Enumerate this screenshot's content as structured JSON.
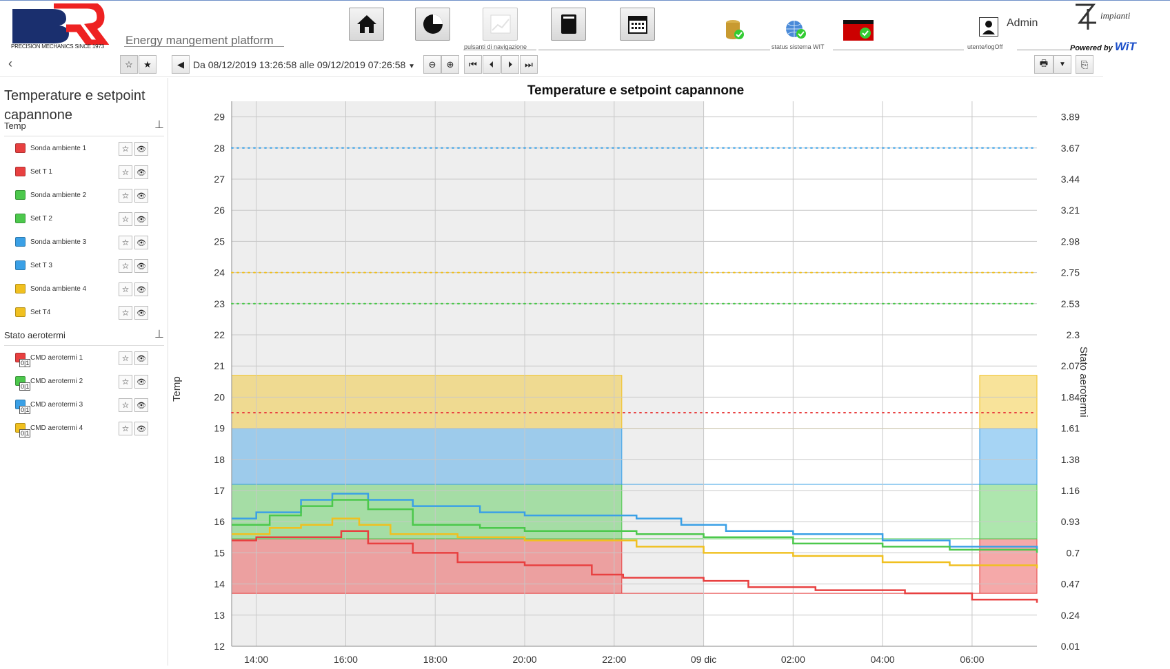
{
  "header": {
    "logo_text": "BR",
    "logo_tagline": "PRECISION MECHANICS SINCE 1973",
    "platform_name": "Energy mangement platform",
    "nav_label": "pulsanti di navigazione",
    "status_label": "status sistema WIT",
    "user_label": "utente/logOff",
    "user_name": "Admin",
    "partner_logo": "impianti",
    "powered_by": "Powered by",
    "powered_brand": "WiT"
  },
  "toolbar": {
    "date_range": "Da 08/12/2019 13:26:58 alle 09/12/2019 07:26:58"
  },
  "sidebar": {
    "title": "Temperature e setpoint capannone",
    "groups": [
      {
        "label": "Temp",
        "items": [
          {
            "label": "Sonda ambiente 1",
            "color": "#e84040"
          },
          {
            "label": "Set T 1",
            "color": "#e84040"
          },
          {
            "label": "Sonda ambiente 2",
            "color": "#4cc84c"
          },
          {
            "label": "Set T 2",
            "color": "#4cc84c"
          },
          {
            "label": "Sonda ambiente 3",
            "color": "#3aa0e6"
          },
          {
            "label": "Set T 3",
            "color": "#3aa0e6"
          },
          {
            "label": "Sonda ambiente 4",
            "color": "#f0c020"
          },
          {
            "label": "Set T4",
            "color": "#f0c020"
          }
        ]
      },
      {
        "label": "Stato aerotermi",
        "items": [
          {
            "label": "CMD aerotermi 1",
            "color": "#e84040",
            "badge": "0|1"
          },
          {
            "label": "CMD aerotermi 2",
            "color": "#4cc84c",
            "badge": "0|1"
          },
          {
            "label": "CMD aerotermi 3",
            "color": "#3aa0e6",
            "badge": "0|1"
          },
          {
            "label": "CMD aerotermi 4",
            "color": "#f0c020",
            "badge": "0|1"
          }
        ]
      }
    ]
  },
  "chart_data": {
    "type": "line",
    "title": "Temperature e setpoint capannone",
    "ylabel": "Temp",
    "y2label": "Stato aerotermi",
    "ylim": [
      12,
      29.5
    ],
    "y_ticks": [
      "12",
      "13",
      "14",
      "15",
      "16",
      "17",
      "18",
      "19",
      "20",
      "21",
      "22",
      "23",
      "24",
      "25",
      "26",
      "27",
      "28",
      "29"
    ],
    "y2_ticks": [
      "0.01",
      "0.24",
      "0.47",
      "0.7",
      "0.93",
      "1.16",
      "1.38",
      "1.61",
      "1.84",
      "2.07",
      "2.3",
      "2.53",
      "2.75",
      "2.98",
      "3.21",
      "3.44",
      "3.67",
      "3.89"
    ],
    "x_ticks": [
      "14:00",
      "16:00",
      "18:00",
      "20:00",
      "22:00",
      "09 dic",
      "02:00",
      "04:00",
      "06:00"
    ],
    "x_range_hours": [
      13.45,
      31.45
    ],
    "series": [
      {
        "name": "Set T 3",
        "color": "#3aa0e6",
        "values": [
          [
            13.45,
            28
          ],
          [
            31.45,
            28
          ]
        ]
      },
      {
        "name": "Set T4",
        "color": "#f0c020",
        "values": [
          [
            13.45,
            24
          ],
          [
            31.45,
            24
          ]
        ]
      },
      {
        "name": "Set T 2",
        "color": "#4cc84c",
        "values": [
          [
            13.45,
            23
          ],
          [
            31.45,
            23
          ]
        ]
      },
      {
        "name": "Set T 1",
        "color": "#e84040",
        "values": [
          [
            13.45,
            19.5
          ],
          [
            31.45,
            19.5
          ]
        ]
      },
      {
        "name": "Sonda ambiente 3",
        "color": "#3aa0e6",
        "values": [
          [
            13.45,
            16.1
          ],
          [
            14.0,
            16.3
          ],
          [
            15.0,
            16.7
          ],
          [
            15.7,
            16.9
          ],
          [
            16.5,
            16.7
          ],
          [
            17.5,
            16.5
          ],
          [
            19.0,
            16.3
          ],
          [
            20.0,
            16.2
          ],
          [
            22.0,
            16.2
          ],
          [
            22.5,
            16.1
          ],
          [
            23.5,
            15.9
          ],
          [
            24.5,
            15.7
          ],
          [
            26.0,
            15.6
          ],
          [
            28.0,
            15.4
          ],
          [
            29.5,
            15.2
          ],
          [
            31.45,
            15.1
          ]
        ]
      },
      {
        "name": "Sonda ambiente 2",
        "color": "#4cc84c",
        "values": [
          [
            13.45,
            15.9
          ],
          [
            14.3,
            16.2
          ],
          [
            15.0,
            16.5
          ],
          [
            15.7,
            16.7
          ],
          [
            16.5,
            16.4
          ],
          [
            17.5,
            15.9
          ],
          [
            19.0,
            15.8
          ],
          [
            20.0,
            15.7
          ],
          [
            22.0,
            15.7
          ],
          [
            22.5,
            15.6
          ],
          [
            24.0,
            15.5
          ],
          [
            26.0,
            15.3
          ],
          [
            28.0,
            15.2
          ],
          [
            29.5,
            15.1
          ],
          [
            31.45,
            15.0
          ]
        ]
      },
      {
        "name": "Sonda ambiente 4",
        "color": "#f0c020",
        "values": [
          [
            13.45,
            15.6
          ],
          [
            14.3,
            15.8
          ],
          [
            15.0,
            15.9
          ],
          [
            15.7,
            16.1
          ],
          [
            16.3,
            15.9
          ],
          [
            17.0,
            15.6
          ],
          [
            18.5,
            15.5
          ],
          [
            20.0,
            15.4
          ],
          [
            22.0,
            15.4
          ],
          [
            22.5,
            15.2
          ],
          [
            24.0,
            15.0
          ],
          [
            26.0,
            14.9
          ],
          [
            28.0,
            14.7
          ],
          [
            29.5,
            14.6
          ],
          [
            31.45,
            14.5
          ]
        ]
      },
      {
        "name": "Sonda ambiente 1",
        "color": "#e84040",
        "values": [
          [
            13.45,
            15.4
          ],
          [
            14.0,
            15.5
          ],
          [
            15.0,
            15.5
          ],
          [
            15.9,
            15.7
          ],
          [
            16.5,
            15.3
          ],
          [
            17.5,
            15.0
          ],
          [
            18.5,
            14.7
          ],
          [
            20.0,
            14.6
          ],
          [
            21.5,
            14.3
          ],
          [
            22.2,
            14.2
          ],
          [
            24.0,
            14.1
          ],
          [
            25.0,
            13.9
          ],
          [
            26.5,
            13.8
          ],
          [
            28.5,
            13.7
          ],
          [
            30.0,
            13.5
          ],
          [
            31.45,
            13.4
          ]
        ]
      }
    ],
    "states": [
      {
        "name": "CMD aerotermi 4",
        "color": "#f0c020",
        "intervals": [
          [
            13.45,
            22.17
          ],
          [
            30.17,
            31.45
          ]
        ]
      },
      {
        "name": "CMD aerotermi 3",
        "color": "#3aa0e6",
        "intervals": [
          [
            13.45,
            22.17
          ],
          [
            30.17,
            31.45
          ]
        ]
      },
      {
        "name": "CMD aerotermi 2",
        "color": "#4cc84c",
        "intervals": [
          [
            13.45,
            22.17
          ],
          [
            30.17,
            31.45
          ]
        ]
      },
      {
        "name": "CMD aerotermi 1",
        "color": "#e84040",
        "intervals": [
          [
            13.45,
            22.17
          ],
          [
            30.17,
            31.45
          ]
        ]
      }
    ],
    "night_shade": [
      13.45,
      24.0
    ],
    "grid": true
  }
}
